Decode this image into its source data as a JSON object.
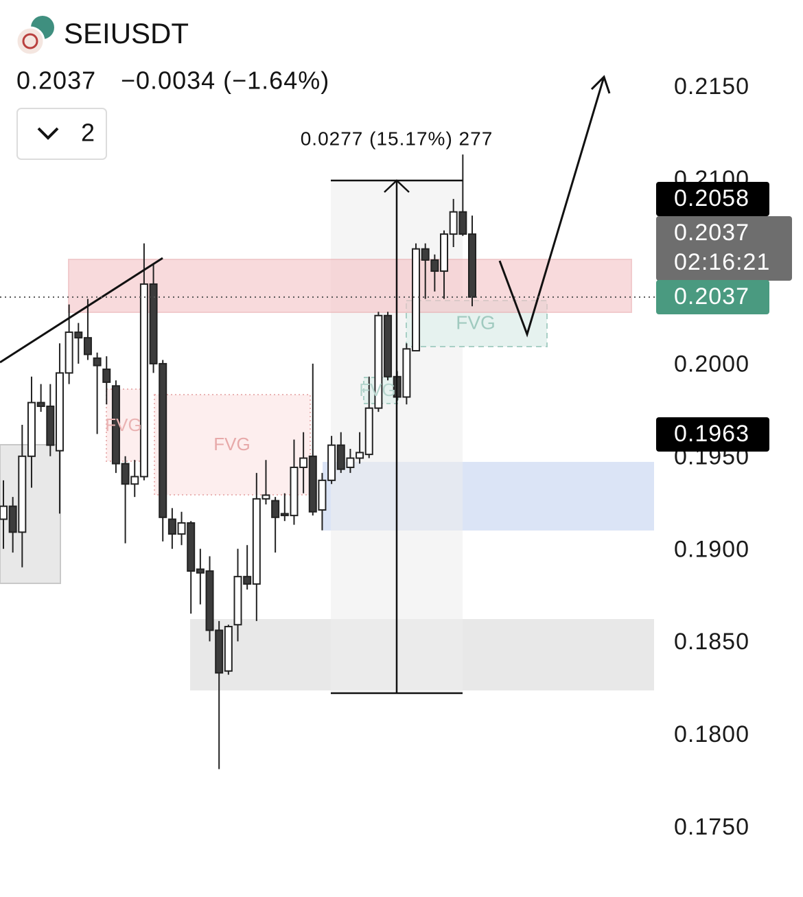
{
  "chart_data": {
    "type": "candlestick",
    "symbol": "SEIUSDT",
    "last_price": "0.2037",
    "change": "−0.0034 (−1.64%)",
    "indicator_toggle": "2",
    "measure_label": "0.0277 (15.17%) 277",
    "fvg_labels": [
      "FVG",
      "FVG",
      "FVG",
      "FVG"
    ],
    "up_color": "#ffffff",
    "down_color": "#3c3c3c",
    "open": [
      0.1917,
      0.1924,
      0.191,
      0.1951,
      0.198,
      0.1978,
      0.1954,
      0.1996,
      0.2018,
      0.2015,
      0.2004,
      0.1998,
      0.1989,
      0.1947,
      0.1936,
      0.194,
      0.2044,
      0.2001,
      0.1917,
      0.1909,
      0.1915,
      0.189,
      0.1889,
      0.1857,
      0.1835,
      0.186,
      0.1886,
      0.1882,
      0.1928,
      0.1927,
      0.192,
      0.1919,
      0.1945,
      0.1951,
      0.1922,
      0.1938,
      0.1957,
      0.1945,
      0.195,
      0.1952,
      0.1977,
      0.2027,
      0.1994,
      0.1983,
      0.2008,
      0.2063,
      0.2057,
      0.2051,
      0.2071,
      0.2083,
      0.2071
    ],
    "high": [
      0.1938,
      0.1929,
      0.1968,
      0.1994,
      0.199,
      0.199,
      0.2012,
      0.2033,
      0.2023,
      0.2036,
      0.2007,
      0.2005,
      0.1992,
      0.1951,
      0.1949,
      0.2066,
      0.2055,
      0.2003,
      0.1923,
      0.1921,
      0.1916,
      0.1901,
      0.1897,
      0.1862,
      0.186,
      0.1901,
      0.1903,
      0.1942,
      0.1949,
      0.1929,
      0.1931,
      0.196,
      0.1964,
      0.2001,
      0.1942,
      0.1962,
      0.1964,
      0.1955,
      0.1964,
      0.1994,
      0.2029,
      0.2029,
      0.1997,
      0.2012,
      0.2066,
      0.2066,
      0.206,
      0.2073,
      0.209,
      0.2114,
      0.2081
    ],
    "low": [
      0.1901,
      0.1899,
      0.1891,
      0.1934,
      0.1975,
      0.1951,
      0.192,
      0.199,
      0.2001,
      0.2003,
      0.1963,
      0.1979,
      0.1942,
      0.1904,
      0.1929,
      0.1938,
      0.1996,
      0.1905,
      0.1901,
      0.1903,
      0.1866,
      0.1871,
      0.1851,
      0.1782,
      0.1833,
      0.1851,
      0.1879,
      0.1862,
      0.1925,
      0.1899,
      0.1916,
      0.1914,
      0.1931,
      0.1919,
      0.1911,
      0.1936,
      0.1942,
      0.1942,
      0.1947,
      0.195,
      0.1975,
      0.1992,
      0.1981,
      0.1979,
      0.2008,
      0.2036,
      0.204,
      0.2036,
      0.2064,
      0.207,
      0.2032
    ],
    "close": [
      0.1924,
      0.191,
      0.1951,
      0.198,
      0.1978,
      0.1957,
      0.1996,
      0.2018,
      0.2015,
      0.2006,
      0.2,
      0.1991,
      0.1947,
      0.1936,
      0.194,
      0.2044,
      0.2001,
      0.1918,
      0.1909,
      0.1915,
      0.1889,
      0.1888,
      0.1857,
      0.1834,
      0.1859,
      0.1886,
      0.1882,
      0.1928,
      0.193,
      0.1918,
      0.1919,
      0.1945,
      0.195,
      0.1921,
      0.1938,
      0.1957,
      0.1944,
      0.195,
      0.1953,
      0.1977,
      0.2027,
      0.1994,
      0.1983,
      0.2009,
      0.2063,
      0.2057,
      0.2051,
      0.2071,
      0.2083,
      0.2071,
      0.2037
    ],
    "ylim": [
      0.175,
      0.215
    ],
    "yticks": [
      {
        "value": 0.215,
        "label": "0.2150"
      },
      {
        "value": 0.21,
        "label": "0.2100"
      },
      {
        "value": 0.2,
        "label": "0.2000"
      },
      {
        "value": 0.195,
        "label": "0.1950"
      },
      {
        "value": 0.19,
        "label": "0.1900"
      },
      {
        "value": 0.185,
        "label": "0.1850"
      },
      {
        "value": 0.18,
        "label": "0.1800"
      },
      {
        "value": 0.175,
        "label": "0.1750"
      }
    ],
    "price_labels": [
      {
        "value": 0.2058,
        "color": "#000000"
      },
      {
        "value": 0.2037,
        "countdown": "02:16:21",
        "color": "#6e6e6e"
      },
      {
        "value": 0.2037,
        "color": "#4a9a80"
      },
      {
        "value": 0.1963,
        "color": "#000000"
      }
    ]
  }
}
